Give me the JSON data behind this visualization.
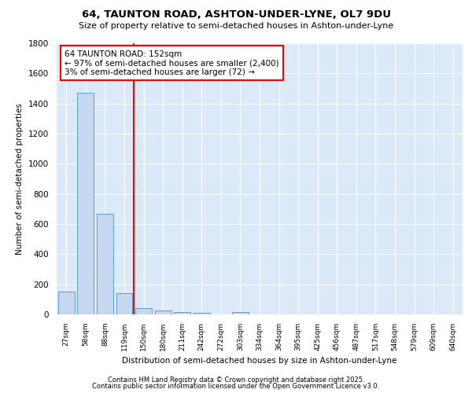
{
  "title1": "64, TAUNTON ROAD, ASHTON-UNDER-LYNE, OL7 9DU",
  "title2": "Size of property relative to semi-detached houses in Ashton-under-Lyne",
  "xlabel": "Distribution of semi-detached houses by size in Ashton-under-Lyne",
  "ylabel": "Number of semi-detached properties",
  "categories": [
    "27sqm",
    "58sqm",
    "88sqm",
    "119sqm",
    "150sqm",
    "180sqm",
    "211sqm",
    "242sqm",
    "272sqm",
    "303sqm",
    "334sqm",
    "364sqm",
    "395sqm",
    "425sqm",
    "456sqm",
    "487sqm",
    "517sqm",
    "548sqm",
    "579sqm",
    "609sqm",
    "640sqm"
  ],
  "values": [
    150,
    1470,
    670,
    140,
    40,
    25,
    15,
    10,
    0,
    15,
    0,
    0,
    0,
    0,
    0,
    0,
    0,
    0,
    0,
    0,
    0
  ],
  "bar_color": "#c5d8f0",
  "bar_edge_color": "#5b9bd5",
  "highlight_line_color": "red",
  "annotation_title": "64 TAUNTON ROAD: 152sqm",
  "annotation_line1": "← 97% of semi-detached houses are smaller (2,400)",
  "annotation_line2": "3% of semi-detached houses are larger (72) →",
  "ylim": [
    0,
    1800
  ],
  "yticks": [
    0,
    200,
    400,
    600,
    800,
    1000,
    1200,
    1400,
    1600,
    1800
  ],
  "background_color": "#dce9f8",
  "grid_color": "#ffffff",
  "footer1": "Contains HM Land Registry data © Crown copyright and database right 2025.",
  "footer2": "Contains public sector information licensed under the Open Government Licence v3.0."
}
